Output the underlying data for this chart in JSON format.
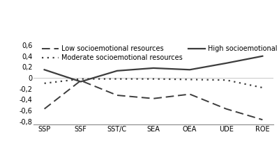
{
  "x_labels": [
    "SSP",
    "SSF",
    "SST/C",
    "SEA",
    "OEA",
    "UDE",
    "ROE"
  ],
  "low": [
    -0.57,
    -0.05,
    -0.32,
    -0.38,
    -0.3,
    -0.57,
    -0.77
  ],
  "moderate": [
    -0.1,
    -0.02,
    -0.02,
    -0.02,
    -0.03,
    -0.04,
    -0.18
  ],
  "high": [
    0.15,
    -0.07,
    0.13,
    0.18,
    0.15,
    0.27,
    0.4
  ],
  "ylim": [
    -0.85,
    0.68
  ],
  "yticks": [
    -0.8,
    -0.6,
    -0.4,
    -0.2,
    0,
    0.2,
    0.4,
    0.6
  ],
  "ytick_labels": [
    "-0,8",
    "-0,6",
    "-0,4",
    "-0,2",
    "0",
    "0,2",
    "0,4",
    "0,6"
  ],
  "line_color": "#3c3c3c",
  "legend_low": "Low socioemotional resources",
  "legend_moderate": "Moderate socioemotional resources",
  "legend_high": "High socioemotional resources",
  "fontsize": 7.0
}
